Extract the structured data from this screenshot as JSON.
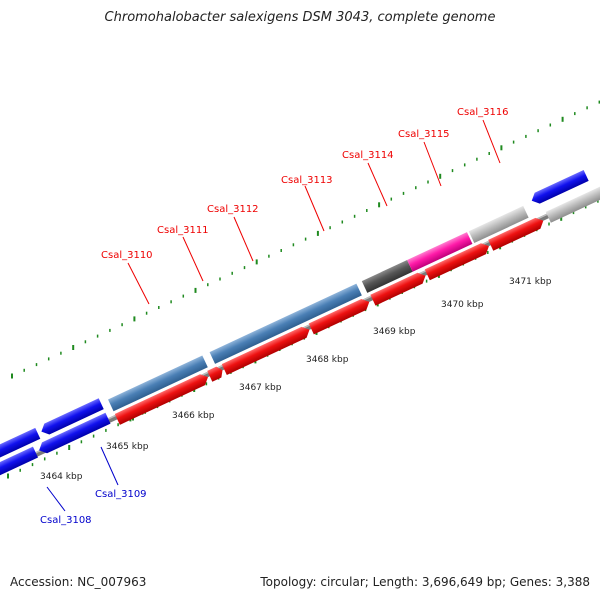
{
  "title": "Chromohalobacter salexigens DSM 3043, complete genome",
  "footer": {
    "accession": "Accession: NC_007963",
    "summary": "Topology: circular; Length: 3,696,649 bp; Genes: 3,388"
  },
  "colors": {
    "forward_gene_blue": "#0000ee",
    "reverse_gene_red": "#ee0000",
    "steelblue_gene": "#4a7fb5",
    "magenta_gene": "#ff1aa8",
    "dark_gray_gene": "#555555",
    "light_gray_gene": "#bdbdbd",
    "tick_green": "#1f8a1f",
    "backbone_gray": "#7a7a7a"
  },
  "scale_labels": [
    "3464 kbp",
    "3465 kbp",
    "3466 kbp",
    "3467 kbp",
    "3468 kbp",
    "3469 kbp",
    "3470 kbp",
    "3471 kbp"
  ],
  "red_gene_labels": [
    "Csal_3110",
    "Csal_3111",
    "Csal_3112",
    "Csal_3113",
    "Csal_3114",
    "Csal_3115",
    "Csal_3116"
  ],
  "blue_gene_labels": [
    "Csal_3108",
    "Csal_3109"
  ]
}
